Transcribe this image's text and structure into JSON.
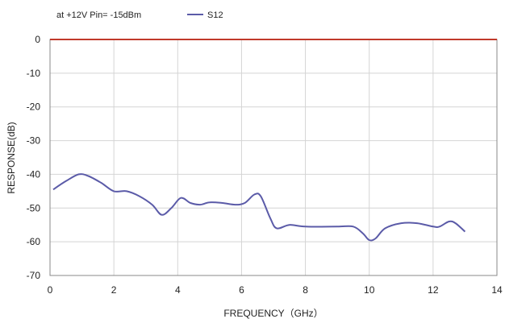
{
  "chart_data": {
    "type": "line",
    "annotation": "at +12V Pin= -15dBm",
    "xlabel": "FREQUENCY（GHz）",
    "ylabel": "RESPONSE(dB)",
    "xlim": [
      0,
      14
    ],
    "ylim": [
      -70,
      0
    ],
    "x_ticks": [
      "0",
      "2",
      "4",
      "6",
      "8",
      "10",
      "12",
      "14"
    ],
    "y_ticks": [
      "0",
      "-10",
      "-20",
      "-30",
      "-40",
      "-50",
      "-60",
      "-70"
    ],
    "grid": true,
    "legend_position": "top",
    "reference_line": {
      "y": 0,
      "color": "#c0392b"
    },
    "series": [
      {
        "name": "S12",
        "color": "#5b5ba8",
        "points": [
          [
            0.1,
            -44.5
          ],
          [
            0.5,
            -42
          ],
          [
            0.9,
            -40
          ],
          [
            1.2,
            -40.5
          ],
          [
            1.6,
            -42.5
          ],
          [
            2.0,
            -45
          ],
          [
            2.4,
            -45
          ],
          [
            2.8,
            -46.5
          ],
          [
            3.2,
            -49
          ],
          [
            3.5,
            -52
          ],
          [
            3.8,
            -50
          ],
          [
            4.1,
            -47
          ],
          [
            4.4,
            -48.5
          ],
          [
            4.7,
            -49
          ],
          [
            5.0,
            -48.3
          ],
          [
            5.4,
            -48.5
          ],
          [
            5.8,
            -49
          ],
          [
            6.1,
            -48.5
          ],
          [
            6.4,
            -46
          ],
          [
            6.6,
            -46.5
          ],
          [
            6.9,
            -53
          ],
          [
            7.1,
            -56
          ],
          [
            7.5,
            -55
          ],
          [
            8.0,
            -55.5
          ],
          [
            9.0,
            -55.5
          ],
          [
            9.5,
            -55.5
          ],
          [
            9.8,
            -57.5
          ],
          [
            10.0,
            -59.5
          ],
          [
            10.2,
            -59
          ],
          [
            10.5,
            -56
          ],
          [
            11.0,
            -54.5
          ],
          [
            11.5,
            -54.5
          ],
          [
            12.0,
            -55.5
          ],
          [
            12.2,
            -55.5
          ],
          [
            12.5,
            -54
          ],
          [
            12.7,
            -54.5
          ],
          [
            13.0,
            -57
          ]
        ]
      }
    ]
  }
}
